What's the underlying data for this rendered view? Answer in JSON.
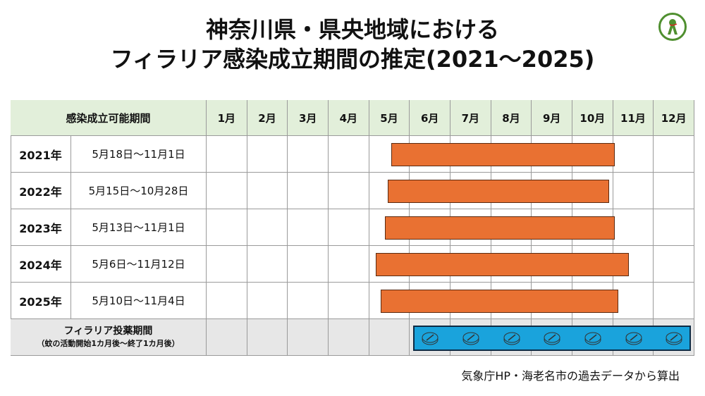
{
  "title_line1": "神奈川県・県央地域における",
  "title_line2": "フィラリア感染成立期間の推定(2021～2025)",
  "logo_icon": "green-circle-mascot-logo",
  "chart_data": {
    "type": "gantt",
    "header_label": "感染成立可能期間",
    "months": [
      "1月",
      "2月",
      "3月",
      "4月",
      "5月",
      "6月",
      "7月",
      "8月",
      "9月",
      "10月",
      "11月",
      "12月"
    ],
    "rows": [
      {
        "year": "2021年",
        "period": "5月18日～11月1日",
        "start": [
          5,
          18
        ],
        "end": [
          11,
          1
        ]
      },
      {
        "year": "2022年",
        "period": "5月15日～10月28日",
        "start": [
          5,
          15
        ],
        "end": [
          10,
          28
        ]
      },
      {
        "year": "2023年",
        "period": "5月13日～11月1日",
        "start": [
          5,
          13
        ],
        "end": [
          11,
          1
        ]
      },
      {
        "year": "2024年",
        "period": "5月6日～11月12日",
        "start": [
          5,
          6
        ],
        "end": [
          11,
          12
        ]
      },
      {
        "year": "2025年",
        "period": "5月10日～11月4日",
        "start": [
          5,
          10
        ],
        "end": [
          11,
          4
        ]
      }
    ],
    "treatment": {
      "label": "フィラリア投薬期間",
      "sublabel": "（蚊の活動開始1カ月後～終了1カ月後）",
      "start_month": 6,
      "end_month": 12,
      "icon": "pill-tablet-icon"
    },
    "colors": {
      "infection_bar": "#e97132",
      "treatment_bar": "#1aa3dc",
      "header_bg": "#e2efda",
      "treatment_row_bg": "#e7e7e7"
    }
  },
  "source_note": "気象庁HP・海老名市の過去データから算出"
}
